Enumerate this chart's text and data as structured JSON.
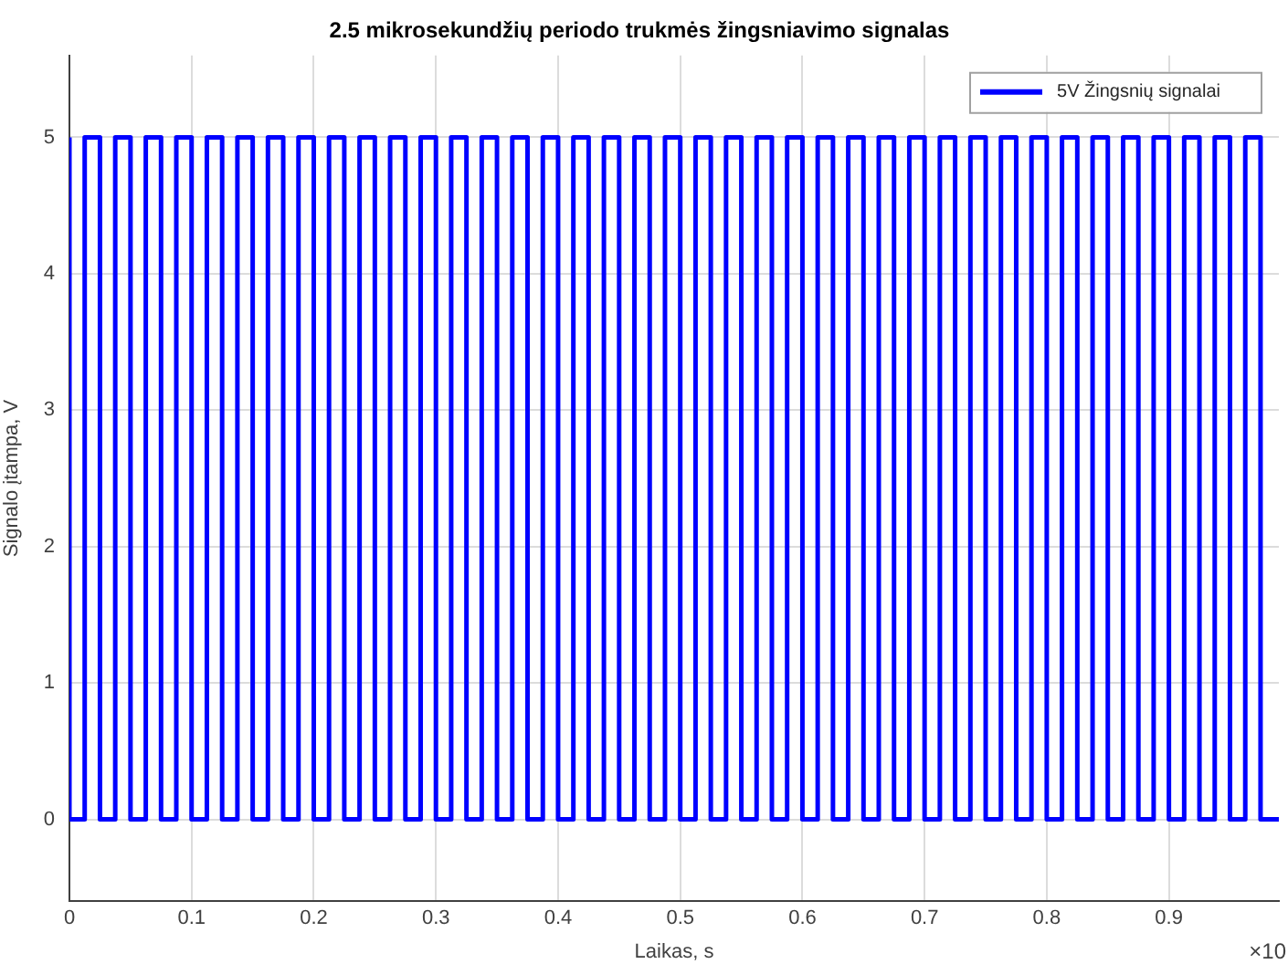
{
  "chart_data": {
    "type": "step",
    "title": "2.5 mikrosekundžių periodo trukmės žingsniavimo signalas",
    "xlabel": "Laikas, s",
    "ylabel": "Signalo įtampa, V",
    "annotations": [
      "×10"
    ],
    "x": [
      0,
      0.0125,
      0.025,
      0.0375,
      0.05,
      0.0625,
      0.075,
      0.0875,
      0.1,
      0.1125,
      0.125,
      0.1375,
      0.15,
      0.1625,
      0.175,
      0.1875,
      0.2,
      0.2125,
      0.225,
      0.2375,
      0.25,
      0.2625,
      0.275,
      0.2875,
      0.3,
      0.3125,
      0.325,
      0.3375,
      0.35,
      0.3625,
      0.375,
      0.3875,
      0.4,
      0.4125,
      0.425,
      0.4375,
      0.45,
      0.4625,
      0.475,
      0.4875,
      0.5,
      0.5125,
      0.525,
      0.5375,
      0.55,
      0.5625,
      0.575,
      0.5875,
      0.6,
      0.6125,
      0.625,
      0.6375,
      0.65,
      0.6625,
      0.675,
      0.6875,
      0.7,
      0.7125,
      0.725,
      0.7375,
      0.75,
      0.7625,
      0.775,
      0.7875,
      0.8,
      0.8125,
      0.825,
      0.8375,
      0.85,
      0.8625,
      0.875,
      0.8875,
      0.9,
      0.9125,
      0.925,
      0.9375,
      0.95,
      0.9625,
      0.975,
      0.9875,
      0.99
    ],
    "series": [
      {
        "name": "5V Žingsnių signalai",
        "color": "#0000ff",
        "values": [
          5,
          0,
          5,
          0,
          5,
          0,
          5,
          0,
          5,
          0,
          5,
          0,
          5,
          0,
          5,
          0,
          5,
          0,
          5,
          0,
          5,
          0,
          5,
          0,
          5,
          0,
          5,
          0,
          5,
          0,
          5,
          0,
          5,
          0,
          5,
          0,
          5,
          0,
          5,
          0,
          5,
          0,
          5,
          0,
          5,
          0,
          5,
          0,
          5,
          0,
          5,
          0,
          5,
          0,
          5,
          0,
          5,
          0,
          5,
          0,
          5,
          0,
          5,
          0,
          5,
          0,
          5,
          0,
          5,
          0,
          5,
          0,
          5,
          0,
          5,
          0,
          5,
          0,
          5,
          0,
          0
        ]
      }
    ],
    "xlim": [
      0,
      0.99
    ],
    "xticks": [
      0,
      0.1,
      0.2,
      0.3,
      0.4,
      0.5,
      0.6,
      0.7,
      0.8,
      0.9
    ],
    "ylim": [
      -0.6,
      5.6
    ],
    "yticks": [
      0,
      1,
      2,
      3,
      4,
      5
    ],
    "grid": true,
    "legend": "top right",
    "line_style": "solid",
    "marker": "none"
  }
}
